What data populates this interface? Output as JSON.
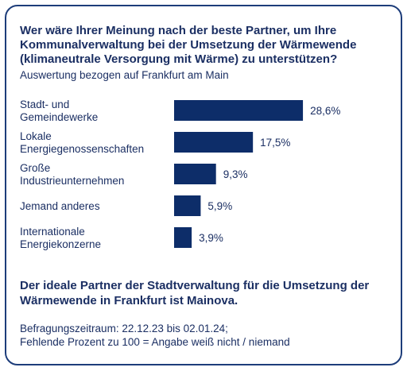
{
  "title_lines": [
    "Wer wäre Ihrer Meinung nach der beste Partner, um Ihre",
    "Kommunalverwaltung bei der Umsetzung der Wärmewende",
    "(klimaneutrale Versorgung mit Wärme) zu unterstützen?"
  ],
  "subtitle": "Auswertung bezogen auf Frankfurt am Main",
  "colors": {
    "bar": "#0d2d69",
    "text": "#1b2f63",
    "border": "#1d3d7a"
  },
  "chart_data": {
    "type": "bar",
    "orientation": "horizontal",
    "categories": [
      [
        "Stadt- und",
        "Gemeindewerke"
      ],
      [
        "Lokale",
        "Energiegenossenschaften"
      ],
      [
        "Große",
        "Industrieunternehmen"
      ],
      [
        "Jemand anderes"
      ],
      [
        "Internationale",
        "Energiekonzerne"
      ]
    ],
    "values": [
      28.6,
      17.5,
      9.3,
      5.9,
      3.9
    ],
    "value_labels": [
      "28,6%",
      "17,5%",
      "9,3%",
      "5,9%",
      "3,9%"
    ],
    "xlim": [
      0,
      30
    ],
    "grid": false,
    "legend": "none"
  },
  "conclusion_lines": [
    "Der ideale Partner der Stadtverwaltung für die Umsetzung der",
    "Wärmewende in Frankfurt ist Mainova."
  ],
  "footnote_lines": [
    "Befragungszeitraum: 22.12.23 bis 02.01.24;",
    "Fehlende Prozent zu 100 = Angabe weiß nicht / niemand"
  ]
}
